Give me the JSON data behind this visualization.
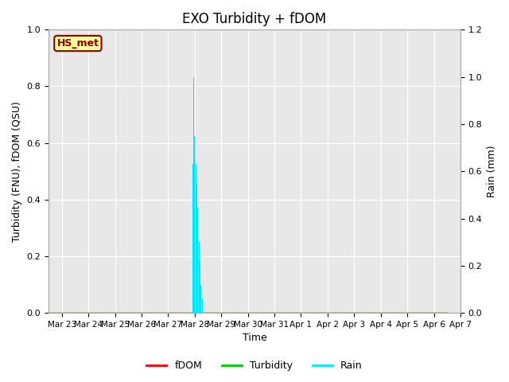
{
  "title": "EXO Turbidity + fDOM",
  "ylabel_left": "Turbidity (FNU), fDOM (QSU)",
  "ylabel_right": "Rain (mm)",
  "xlabel": "Time",
  "ylim_left": [
    0.0,
    1.0
  ],
  "ylim_right": [
    0.0,
    1.2
  ],
  "yticks_left": [
    0.0,
    0.2,
    0.4,
    0.6,
    0.8,
    1.0
  ],
  "yticks_right": [
    0.0,
    0.2,
    0.4,
    0.6,
    0.8,
    1.0,
    1.2
  ],
  "bg_color": "#e8e8e8",
  "legend_label": "HS_met",
  "legend_bg": "#ffff99",
  "legend_border": "#8b0000",
  "xtick_labels": [
    "Mar 23",
    "Mar 24",
    "Mar 25",
    "Mar 26",
    "Mar 27",
    "Mar 28",
    "Mar 29",
    "Mar 30",
    "Mar 31",
    "Apr 1",
    "Apr 2",
    "Apr 3",
    "Apr 4",
    "Apr 5",
    "Apr 6",
    "Apr 7"
  ],
  "rain_offsets": [
    4.92,
    4.96,
    5.0,
    5.04,
    5.08,
    5.12,
    5.16,
    5.2,
    5.24,
    5.28
  ],
  "rain_values": [
    0.63,
    1.0,
    0.75,
    0.63,
    0.55,
    0.45,
    0.3,
    0.22,
    0.12,
    0.06
  ],
  "fdom_color": "#ff0000",
  "turbidity_color": "#00cc00",
  "rain_color": "#00e5ff",
  "grid_color": "#ffffff",
  "title_fontsize": 12,
  "axis_fontsize": 9,
  "tick_fontsize": 8,
  "xtick_fontsize": 7.5
}
